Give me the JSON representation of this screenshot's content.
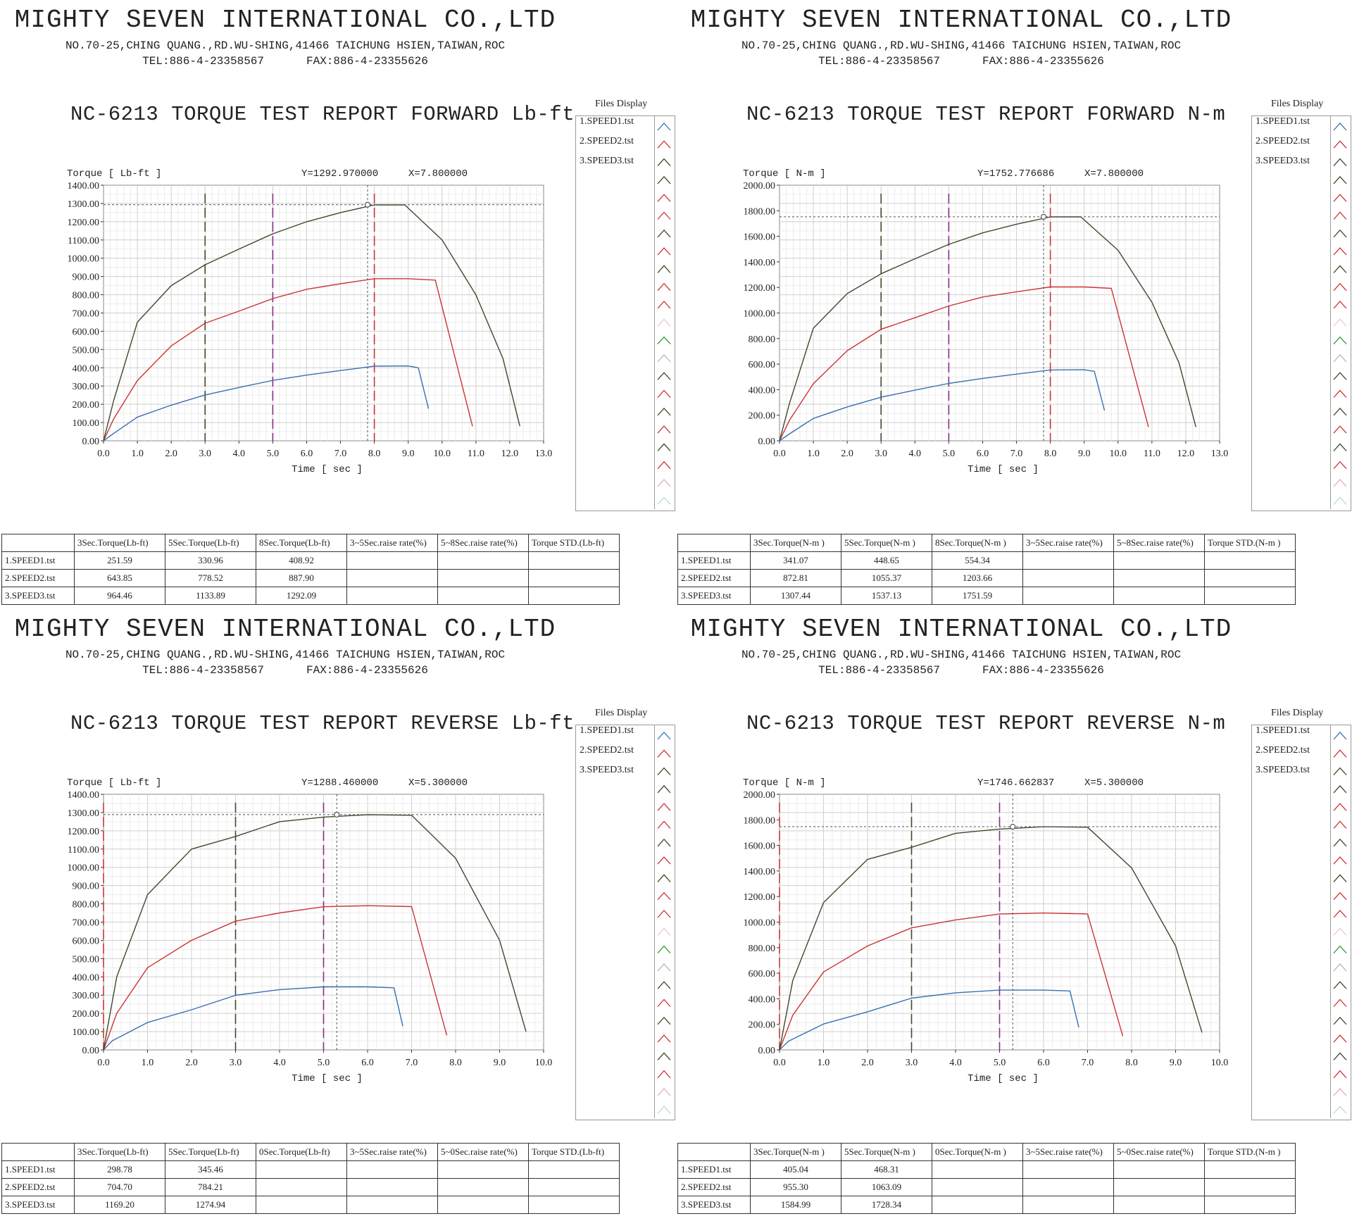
{
  "company": {
    "name": "MIGHTY SEVEN INTERNATIONAL CO.,LTD",
    "address": "NO.70-25,CHING QUANG.,RD.WU-SHING,41466 TAICHUNG HSIEN,TAIWAN,ROC",
    "tel": "TEL:886-4-23358567",
    "fax": "FAX:886-4-23355626"
  },
  "files_display": {
    "title": "Files Display",
    "items": [
      "1.SPEED1.tst",
      "2.SPEED2.tst",
      "3.SPEED3.tst"
    ],
    "colors": [
      "#3a6fb0",
      "#cc3333",
      "#3d4a2a"
    ]
  },
  "panels": [
    {
      "title": "NC-6213 TORQUE TEST REPORT FORWARD Lb-ft",
      "ylabel": "Torque [ Lb-ft ]",
      "xlabel": "Time [ sec ]",
      "cursor_y_text": "Y=1292.970000",
      "cursor_x_text": "X=7.800000",
      "yticks": [
        "0.00",
        "100.00",
        "200.00",
        "300.00",
        "400.00",
        "500.00",
        "600.00",
        "700.00",
        "800.00",
        "900.00",
        "1000.00",
        "1100.00",
        "1200.00",
        "1300.00",
        "1400.00"
      ],
      "xticks": [
        "0.0",
        "1.0",
        "2.0",
        "3.0",
        "4.0",
        "5.0",
        "6.0",
        "7.0",
        "8.0",
        "9.0",
        "10.0",
        "11.0",
        "12.0",
        "13.0"
      ],
      "table_headers": [
        "3Sec.Torque(Lb-ft)",
        "5Sec.Torque(Lb-ft)",
        "8Sec.Torque(Lb-ft)",
        "3~5Sec.raise rate(%)",
        "5~8Sec.raise rate(%)",
        "Torque STD.(Lb-ft)"
      ],
      "rows": [
        {
          "label": "1.SPEED1.tst",
          "values": [
            "251.59",
            "330.96",
            "408.92",
            "",
            "",
            ""
          ]
        },
        {
          "label": "2.SPEED2.tst",
          "values": [
            "643.85",
            "778.52",
            "887.90",
            "",
            "",
            ""
          ]
        },
        {
          "label": "3.SPEED3.tst",
          "values": [
            "964.46",
            "1133.89",
            "1292.09",
            "",
            "",
            ""
          ]
        }
      ]
    },
    {
      "title": "NC-6213 TORQUE TEST REPORT FORWARD N-m",
      "ylabel": "Torque [ N-m ]",
      "xlabel": "Time [ sec ]",
      "cursor_y_text": "Y=1752.776686",
      "cursor_x_text": "X=7.800000",
      "yticks": [
        "0.00",
        "200.00",
        "400.00",
        "600.00",
        "800.00",
        "1000.00",
        "1200.00",
        "1400.00",
        "1600.00",
        "1800.00",
        "2000.00"
      ],
      "xticks": [
        "0.0",
        "1.0",
        "2.0",
        "3.0",
        "4.0",
        "5.0",
        "6.0",
        "7.0",
        "8.0",
        "9.0",
        "10.0",
        "11.0",
        "12.0",
        "13.0"
      ],
      "table_headers": [
        "3Sec.Torque(N-m )",
        "5Sec.Torque(N-m )",
        "8Sec.Torque(N-m )",
        "3~5Sec.raise rate(%)",
        "5~8Sec.raise rate(%)",
        "Torque STD.(N-m )"
      ],
      "rows": [
        {
          "label": "1.SPEED1.tst",
          "values": [
            "341.07",
            "448.65",
            "554.34",
            "",
            "",
            ""
          ]
        },
        {
          "label": "2.SPEED2.tst",
          "values": [
            "872.81",
            "1055.37",
            "1203.66",
            "",
            "",
            ""
          ]
        },
        {
          "label": "3.SPEED3.tst",
          "values": [
            "1307.44",
            "1537.13",
            "1751.59",
            "",
            "",
            ""
          ]
        }
      ]
    },
    {
      "title": "NC-6213 TORQUE TEST REPORT REVERSE Lb-ft",
      "ylabel": "Torque [ Lb-ft ]",
      "xlabel": "Time [ sec ]",
      "cursor_y_text": "Y=1288.460000",
      "cursor_x_text": "X=5.300000",
      "yticks": [
        "0.00",
        "100.00",
        "200.00",
        "300.00",
        "400.00",
        "500.00",
        "600.00",
        "700.00",
        "800.00",
        "900.00",
        "1000.00",
        "1100.00",
        "1200.00",
        "1300.00",
        "1400.00"
      ],
      "xticks": [
        "0.0",
        "1.0",
        "2.0",
        "3.0",
        "4.0",
        "5.0",
        "6.0",
        "7.0",
        "8.0",
        "9.0",
        "10.0"
      ],
      "table_headers": [
        "3Sec.Torque(Lb-ft)",
        "5Sec.Torque(Lb-ft)",
        "0Sec.Torque(Lb-ft)",
        "3~5Sec.raise rate(%)",
        "5~0Sec.raise rate(%)",
        "Torque STD.(Lb-ft)"
      ],
      "rows": [
        {
          "label": "1.SPEED1.tst",
          "values": [
            "298.78",
            "345.46",
            "",
            "",
            "",
            ""
          ]
        },
        {
          "label": "2.SPEED2.tst",
          "values": [
            "704.70",
            "784.21",
            "",
            "",
            "",
            ""
          ]
        },
        {
          "label": "3.SPEED3.tst",
          "values": [
            "1169.20",
            "1274.94",
            "",
            "",
            "",
            ""
          ]
        }
      ]
    },
    {
      "title": "NC-6213 TORQUE TEST REPORT REVERSE N-m",
      "ylabel": "Torque [ N-m ]",
      "xlabel": "Time [ sec ]",
      "cursor_y_text": "Y=1746.662837",
      "cursor_x_text": "X=5.300000",
      "yticks": [
        "0.00",
        "200.00",
        "400.00",
        "600.00",
        "800.00",
        "1000.00",
        "1200.00",
        "1400.00",
        "1600.00",
        "1800.00",
        "2000.00"
      ],
      "xticks": [
        "0.0",
        "1.0",
        "2.0",
        "3.0",
        "4.0",
        "5.0",
        "6.0",
        "7.0",
        "8.0",
        "9.0",
        "10.0"
      ],
      "table_headers": [
        "3Sec.Torque(N-m )",
        "5Sec.Torque(N-m )",
        "0Sec.Torque(N-m )",
        "3~5Sec.raise rate(%)",
        "5~0Sec.raise rate(%)",
        "Torque STD.(N-m )"
      ],
      "rows": [
        {
          "label": "1.SPEED1.tst",
          "values": [
            "405.04",
            "468.31",
            "",
            "",
            "",
            ""
          ]
        },
        {
          "label": "2.SPEED2.tst",
          "values": [
            "955.30",
            "1063.09",
            "",
            "",
            "",
            ""
          ]
        },
        {
          "label": "3.SPEED3.tst",
          "values": [
            "1584.99",
            "1728.34",
            "",
            "",
            "",
            ""
          ]
        }
      ]
    }
  ],
  "chart_data": [
    {
      "type": "line",
      "title": "NC-6213 TORQUE TEST REPORT FORWARD Lb-ft",
      "xlabel": "Time [ sec ]",
      "ylabel": "Torque [ Lb-ft ]",
      "xlim": [
        0,
        13
      ],
      "ylim": [
        0,
        1400
      ],
      "grid": true,
      "cursor": {
        "x": 7.8,
        "y": 1292.97
      },
      "markers": [
        {
          "x": 3.0,
          "color": "#3d4a2a"
        },
        {
          "x": 5.0,
          "color": "#8a2a8a"
        },
        {
          "x": 8.0,
          "color": "#cc3333"
        }
      ],
      "series": [
        {
          "name": "1.SPEED1.tst",
          "color": "#3a6fb0",
          "x": [
            0,
            0.3,
            1,
            2,
            3,
            4,
            5,
            6,
            7,
            8,
            9,
            9.3,
            9.6
          ],
          "y": [
            0,
            40,
            130,
            195,
            251,
            292,
            331,
            360,
            385,
            409,
            410,
            400,
            175
          ]
        },
        {
          "name": "2.SPEED2.tst",
          "color": "#cc3333",
          "x": [
            0,
            0.3,
            1,
            2,
            3,
            4,
            5,
            6,
            7,
            8,
            9,
            9.8,
            10.9
          ],
          "y": [
            0,
            120,
            330,
            520,
            644,
            710,
            779,
            830,
            860,
            888,
            888,
            880,
            80
          ]
        },
        {
          "name": "3.SPEED3.tst",
          "color": "#3d4a2a",
          "x": [
            0,
            0.3,
            1,
            2,
            3,
            4,
            5,
            6,
            7,
            8,
            8.9,
            10,
            11,
            11.8,
            12.3
          ],
          "y": [
            0,
            220,
            650,
            850,
            964,
            1050,
            1134,
            1200,
            1250,
            1292,
            1292,
            1100,
            800,
            450,
            80
          ]
        }
      ]
    },
    {
      "type": "line",
      "title": "NC-6213 TORQUE TEST REPORT FORWARD N-m",
      "xlabel": "Time [ sec ]",
      "ylabel": "Torque [ N-m ]",
      "xlim": [
        0,
        13
      ],
      "ylim": [
        0,
        2000
      ],
      "grid": true,
      "cursor": {
        "x": 7.8,
        "y": 1752.776686
      },
      "markers": [
        {
          "x": 3.0,
          "color": "#3d4a2a"
        },
        {
          "x": 5.0,
          "color": "#8a2a8a"
        },
        {
          "x": 8.0,
          "color": "#cc3333"
        }
      ],
      "series": [
        {
          "name": "1.SPEED1.tst",
          "color": "#3a6fb0",
          "x": [
            0,
            0.3,
            1,
            2,
            3,
            4,
            5,
            6,
            7,
            8,
            9,
            9.3,
            9.6
          ],
          "y": [
            0,
            55,
            175,
            265,
            341,
            396,
            449,
            488,
            522,
            554,
            556,
            543,
            237
          ]
        },
        {
          "name": "2.SPEED2.tst",
          "color": "#cc3333",
          "x": [
            0,
            0.3,
            1,
            2,
            3,
            4,
            5,
            6,
            7,
            8,
            9,
            9.8,
            10.9
          ],
          "y": [
            0,
            163,
            447,
            705,
            873,
            963,
            1055,
            1125,
            1166,
            1204,
            1204,
            1193,
            108
          ]
        },
        {
          "name": "3.SPEED3.tst",
          "color": "#3d4a2a",
          "x": [
            0,
            0.3,
            1,
            2,
            3,
            4,
            5,
            6,
            7,
            8,
            8.9,
            10,
            11,
            11.8,
            12.3
          ],
          "y": [
            0,
            298,
            881,
            1152,
            1307,
            1424,
            1537,
            1627,
            1695,
            1752,
            1752,
            1491,
            1085,
            610,
            108
          ]
        }
      ]
    },
    {
      "type": "line",
      "title": "NC-6213 TORQUE TEST REPORT REVERSE Lb-ft",
      "xlabel": "Time [ sec ]",
      "ylabel": "Torque [ Lb-ft ]",
      "xlim": [
        0,
        10
      ],
      "ylim": [
        0,
        1400
      ],
      "grid": true,
      "cursor": {
        "x": 5.3,
        "y": 1288.46
      },
      "markers": [
        {
          "x": 0.0,
          "color": "#cc3333"
        },
        {
          "x": 3.0,
          "color": "#3d4a2a"
        },
        {
          "x": 5.0,
          "color": "#8a2a8a"
        }
      ],
      "series": [
        {
          "name": "1.SPEED1.tst",
          "color": "#3a6fb0",
          "x": [
            0,
            0.2,
            1,
            2,
            3,
            4,
            5,
            6,
            6.6,
            6.8
          ],
          "y": [
            0,
            50,
            150,
            220,
            299,
            330,
            345,
            345,
            340,
            130
          ]
        },
        {
          "name": "2.SPEED2.tst",
          "color": "#cc3333",
          "x": [
            0,
            0.3,
            1,
            2,
            3,
            4,
            5,
            6,
            7,
            7.8
          ],
          "y": [
            0,
            200,
            450,
            600,
            705,
            750,
            784,
            790,
            785,
            80
          ]
        },
        {
          "name": "3.SPEED3.tst",
          "color": "#3d4a2a",
          "x": [
            0,
            0.3,
            1,
            2,
            3,
            4,
            5,
            6,
            7,
            8,
            9,
            9.6
          ],
          "y": [
            0,
            400,
            850,
            1100,
            1169,
            1250,
            1275,
            1288,
            1285,
            1050,
            600,
            100
          ]
        }
      ]
    },
    {
      "type": "line",
      "title": "NC-6213 TORQUE TEST REPORT REVERSE N-m",
      "xlabel": "Time [ sec ]",
      "ylabel": "Torque [ N-m ]",
      "xlim": [
        0,
        10
      ],
      "ylim": [
        0,
        2000
      ],
      "grid": true,
      "cursor": {
        "x": 5.3,
        "y": 1746.662837
      },
      "markers": [
        {
          "x": 0.0,
          "color": "#cc3333"
        },
        {
          "x": 3.0,
          "color": "#3d4a2a"
        },
        {
          "x": 5.0,
          "color": "#8a2a8a"
        }
      ],
      "series": [
        {
          "name": "1.SPEED1.tst",
          "color": "#3a6fb0",
          "x": [
            0,
            0.2,
            1,
            2,
            3,
            4,
            5,
            6,
            6.6,
            6.8
          ],
          "y": [
            0,
            68,
            203,
            298,
            405,
            447,
            468,
            468,
            461,
            176
          ]
        },
        {
          "name": "2.SPEED2.tst",
          "color": "#cc3333",
          "x": [
            0,
            0.3,
            1,
            2,
            3,
            4,
            5,
            6,
            7,
            7.8
          ],
          "y": [
            0,
            271,
            610,
            813,
            955,
            1017,
            1063,
            1071,
            1064,
            108
          ]
        },
        {
          "name": "3.SPEED3.tst",
          "color": "#3d4a2a",
          "x": [
            0,
            0.3,
            1,
            2,
            3,
            4,
            5,
            6,
            7,
            8,
            9,
            9.6
          ],
          "y": [
            0,
            542,
            1152,
            1491,
            1585,
            1695,
            1728,
            1746,
            1742,
            1424,
            813,
            136
          ]
        }
      ]
    }
  ]
}
